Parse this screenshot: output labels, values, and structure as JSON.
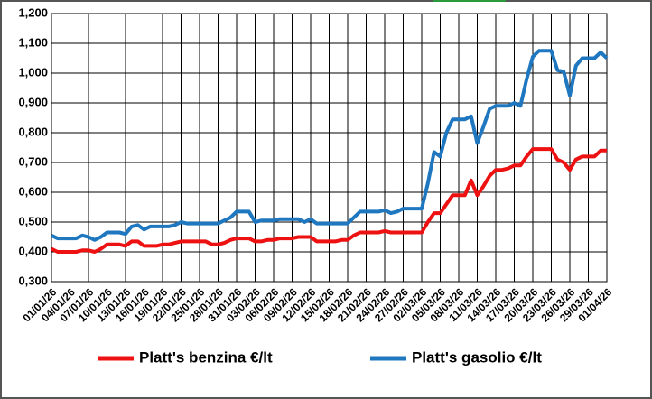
{
  "chart_data": {
    "type": "line",
    "categories": [
      "01/01/26",
      null,
      null,
      "04/01/26",
      null,
      null,
      "07/01/26",
      null,
      null,
      "10/01/26",
      null,
      null,
      "13/01/26",
      null,
      null,
      "16/01/26",
      null,
      null,
      "19/01/26",
      null,
      null,
      "22/01/26",
      null,
      null,
      "25/01/26",
      null,
      null,
      "28/01/26",
      null,
      null,
      "31/01/26",
      null,
      null,
      "03/02/26",
      null,
      null,
      "06/02/26",
      null,
      null,
      "09/02/26",
      null,
      null,
      "12/02/26",
      null,
      null,
      "15/02/26",
      null,
      null,
      "18/02/26",
      null,
      null,
      "21/02/26",
      null,
      null,
      "24/02/26",
      null,
      null,
      "27/02/26",
      null,
      null,
      "02/03/26",
      null,
      null,
      "05/03/26",
      null,
      null,
      "08/03/26",
      null,
      null,
      "11/03/26",
      null,
      null,
      "14/03/26",
      null,
      null,
      "17/03/26",
      null,
      null,
      "20/03/26",
      null,
      null,
      "23/03/26",
      null,
      null,
      "26/03/26",
      null,
      null,
      "29/03/26",
      null,
      null,
      "01/04/26"
    ],
    "series": [
      {
        "name": "Platt's benzina €/lt",
        "color": "#ee1111",
        "values": [
          0.41,
          0.4,
          0.4,
          0.4,
          0.4,
          0.405,
          0.405,
          0.4,
          0.41,
          0.425,
          0.425,
          0.425,
          0.42,
          0.435,
          0.435,
          0.42,
          0.42,
          0.42,
          0.425,
          0.425,
          0.43,
          0.435,
          0.435,
          0.435,
          0.435,
          0.435,
          0.425,
          0.425,
          0.43,
          0.44,
          0.445,
          0.445,
          0.445,
          0.435,
          0.435,
          0.44,
          0.44,
          0.445,
          0.445,
          0.445,
          0.45,
          0.45,
          0.45,
          0.435,
          0.435,
          0.435,
          0.435,
          0.44,
          0.44,
          0.455,
          0.465,
          0.465,
          0.465,
          0.465,
          0.47,
          0.465,
          0.465,
          0.465,
          0.465,
          0.465,
          0.465,
          0.5,
          0.53,
          0.53,
          0.56,
          0.59,
          0.59,
          0.59,
          0.64,
          0.59,
          0.62,
          0.655,
          0.675,
          0.675,
          0.68,
          0.69,
          0.69,
          0.72,
          0.745,
          0.745,
          0.745,
          0.745,
          0.71,
          0.7,
          0.675,
          0.71,
          0.72,
          0.72,
          0.72,
          0.74,
          0.74
        ]
      },
      {
        "name": "Platt's gasolio €/lt",
        "color": "#1f77c0",
        "values": [
          0.455,
          0.445,
          0.445,
          0.445,
          0.445,
          0.455,
          0.45,
          0.44,
          0.45,
          0.465,
          0.465,
          0.465,
          0.46,
          0.485,
          0.49,
          0.475,
          0.485,
          0.485,
          0.485,
          0.485,
          0.49,
          0.5,
          0.495,
          0.495,
          0.495,
          0.495,
          0.495,
          0.495,
          0.505,
          0.515,
          0.535,
          0.535,
          0.535,
          0.5,
          0.505,
          0.505,
          0.505,
          0.51,
          0.51,
          0.51,
          0.51,
          0.5,
          0.51,
          0.495,
          0.495,
          0.495,
          0.495,
          0.495,
          0.495,
          0.515,
          0.535,
          0.535,
          0.535,
          0.535,
          0.54,
          0.53,
          0.535,
          0.545,
          0.545,
          0.545,
          0.545,
          0.63,
          0.735,
          0.72,
          0.8,
          0.845,
          0.845,
          0.845,
          0.855,
          0.765,
          0.82,
          0.88,
          0.89,
          0.89,
          0.89,
          0.9,
          0.89,
          0.98,
          1.055,
          1.075,
          1.075,
          1.075,
          1.01,
          1.005,
          0.925,
          1.025,
          1.05,
          1.05,
          1.05,
          1.07,
          1.05
        ]
      }
    ],
    "ylim": [
      0.3,
      1.2
    ],
    "yticks": [
      {
        "value": 0.3,
        "label": "0,300"
      },
      {
        "value": 0.4,
        "label": "0,400"
      },
      {
        "value": 0.5,
        "label": "0,500"
      },
      {
        "value": 0.6,
        "label": "0,600"
      },
      {
        "value": 0.7,
        "label": "0,700"
      },
      {
        "value": 0.8,
        "label": "0,800"
      },
      {
        "value": 0.9,
        "label": "0,900"
      },
      {
        "value": 1.0,
        "label": "1,000"
      },
      {
        "value": 1.1,
        "label": "1,100"
      },
      {
        "value": 1.2,
        "label": "1,200"
      }
    ],
    "grid": true,
    "legend": "bottom"
  }
}
